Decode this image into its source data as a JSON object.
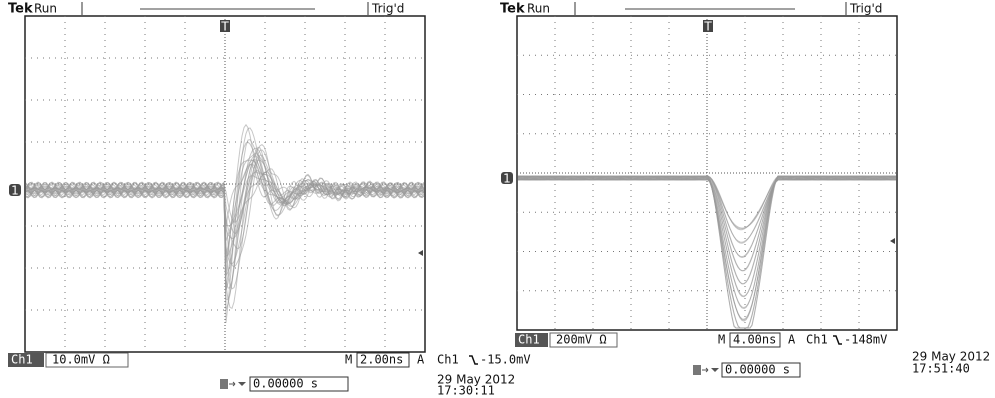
{
  "scopes": [
    {
      "brand": "Tek",
      "status": "Run",
      "trigger_status": "Trig'd",
      "trigger_marker": "T",
      "channel_marker": "1",
      "channel": "Ch1",
      "channel_scale": "10.0mV Ω",
      "timebase_label": "M",
      "timebase": "2.00ns",
      "trigger_mode": "A",
      "trigger_source": "Ch1",
      "trigger_level": "-15.0mV",
      "trigger_position": "0.00000 s",
      "date": "29 May 2012",
      "time": "17:30:11"
    },
    {
      "brand": "Tek",
      "status": "Run",
      "trigger_status": "Trig'd",
      "trigger_marker": "T",
      "channel_marker": "1",
      "channel": "Ch1",
      "channel_scale": "200mV Ω",
      "timebase_label": "M",
      "timebase": "4.00ns",
      "trigger_mode": "A",
      "trigger_source": "Ch1",
      "trigger_level": "-148mV",
      "trigger_position": "0.00000 s",
      "date": "29 May 2012",
      "time": "17:51:40"
    }
  ]
}
